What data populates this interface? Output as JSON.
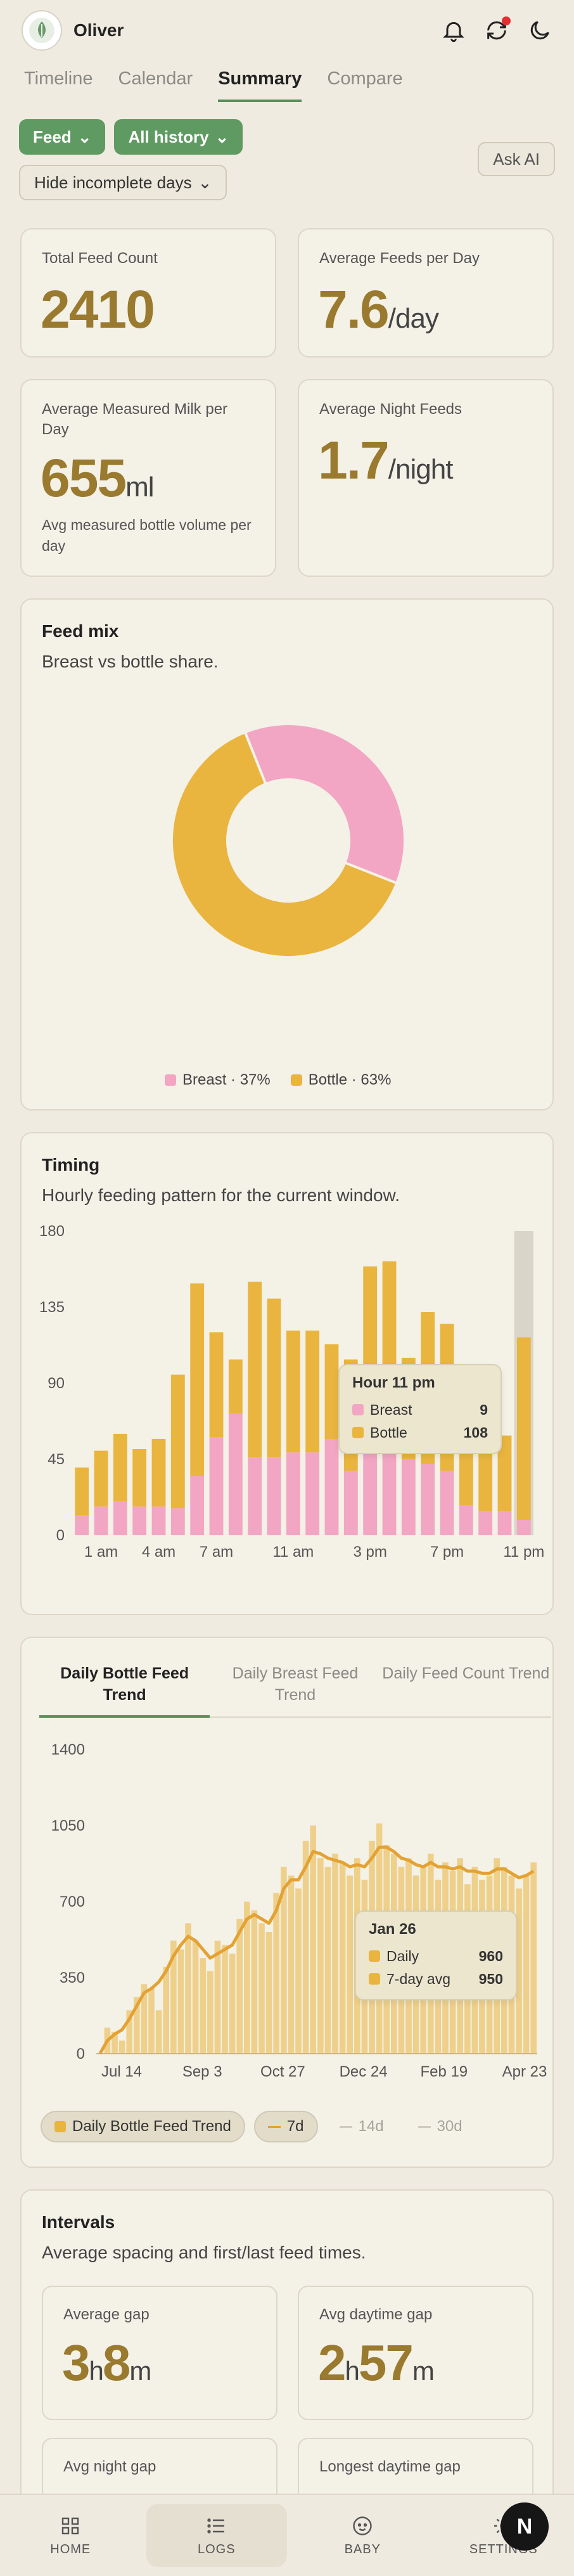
{
  "header": {
    "child_name": "Oliver",
    "icons": [
      "bell-icon",
      "sync-icon",
      "moon-icon"
    ],
    "sync_alert_color": "#e23030"
  },
  "tabs": [
    {
      "label": "Timeline"
    },
    {
      "label": "Calendar"
    },
    {
      "label": "Summary",
      "active": true
    },
    {
      "label": "Compare"
    }
  ],
  "filters": {
    "feed": "Feed",
    "history": "All history",
    "incomplete": "Hide incomplete days",
    "ask_ai": "Ask AI"
  },
  "stats": {
    "total": {
      "title": "Total Feed Count",
      "value": "2410"
    },
    "per_day": {
      "title": "Average Feeds per Day",
      "value": "7.6",
      "unit": "/day"
    },
    "milk": {
      "title": "Average Measured Milk per Day",
      "value": "655",
      "unit": "ml",
      "sub": "Avg measured bottle volume per day"
    },
    "night": {
      "title": "Average Night Feeds",
      "value": "1.7",
      "unit": "/night"
    }
  },
  "feed_mix": {
    "title": "Feed mix",
    "subtitle": "Breast vs bottle share.",
    "breast_label": "Breast · 37%",
    "bottle_label": "Bottle · 63%"
  },
  "timing": {
    "title": "Timing",
    "subtitle": "Hourly feeding pattern for the current window.",
    "tooltip": {
      "hour": "Hour 11 pm",
      "breast_label": "Breast",
      "breast": "9",
      "bottle_label": "Bottle",
      "bottle": "108"
    }
  },
  "trend": {
    "tabs": [
      {
        "label": "Daily Bottle Feed Trend",
        "active": true
      },
      {
        "label": "Daily Breast Feed Trend"
      },
      {
        "label": "Daily Feed Count Trend"
      }
    ],
    "tooltip": {
      "date": "Jan 26",
      "daily_label": "Daily",
      "daily": "960",
      "avg_label": "7-day avg",
      "avg": "950"
    },
    "chips": {
      "series": "Daily Bottle Feed Trend",
      "d7": "7d",
      "d14": "14d",
      "d30": "30d"
    }
  },
  "intervals": {
    "title": "Intervals",
    "subtitle": "Average spacing and first/last feed times.",
    "avg_gap": {
      "label": "Average gap",
      "h": "3",
      "m": "8"
    },
    "day_gap": {
      "label": "Avg daytime gap",
      "h": "2",
      "m": "57"
    },
    "night_gap": {
      "label": "Avg night gap"
    },
    "longest_day": {
      "label": "Longest daytime gap"
    },
    "unit_h": "h",
    "unit_m": "m"
  },
  "nav": [
    {
      "label": "HOME",
      "icon": "grid-icon"
    },
    {
      "label": "LOGS",
      "icon": "list-icon",
      "active": true
    },
    {
      "label": "BABY",
      "icon": "baby-icon"
    },
    {
      "label": "SETTINGS",
      "icon": "gear-icon"
    }
  ],
  "fab": "N",
  "colors": {
    "breast": "#f2a6c3",
    "bottle": "#e9b53f",
    "accent": "#9a7a2e",
    "green": "#5f9a62"
  },
  "chart_data": [
    {
      "type": "pie",
      "title": "Feed mix",
      "categories": [
        "Breast",
        "Bottle"
      ],
      "values": [
        37,
        63
      ]
    },
    {
      "type": "bar",
      "stacked": true,
      "title": "Timing",
      "categories": [
        "12 am",
        "1 am",
        "2 am",
        "3 am",
        "4 am",
        "5 am",
        "6 am",
        "7 am",
        "8 am",
        "9 am",
        "10 am",
        "11 am",
        "12 pm",
        "1 pm",
        "2 pm",
        "3 pm",
        "4 pm",
        "5 pm",
        "6 pm",
        "7 pm",
        "8 pm",
        "9 pm",
        "10 pm",
        "11 pm"
      ],
      "tick_labels": [
        "1 am",
        "4 am",
        "7 am",
        "11 am",
        "3 pm",
        "7 pm",
        "11 pm"
      ],
      "series": [
        {
          "name": "Breast",
          "values": [
            12,
            17,
            20,
            17,
            17,
            16,
            35,
            58,
            72,
            46,
            46,
            49,
            49,
            57,
            38,
            58,
            60,
            45,
            42,
            38,
            18,
            14,
            14,
            9
          ]
        },
        {
          "name": "Bottle",
          "values": [
            28,
            33,
            40,
            34,
            40,
            79,
            114,
            62,
            32,
            104,
            94,
            72,
            72,
            56,
            66,
            101,
            102,
            60,
            90,
            87,
            57,
            42,
            45,
            108
          ]
        }
      ],
      "ylim": [
        0,
        180
      ],
      "yticks": [
        0,
        45,
        90,
        135,
        180
      ],
      "highlight": "11 pm"
    },
    {
      "type": "bar",
      "title": "Daily Bottle Feed Trend",
      "xlabels": [
        "Jul 14",
        "Sep 3",
        "Oct 27",
        "Dec 24",
        "Feb 19",
        "Apr 23"
      ],
      "ylim": [
        0,
        1400
      ],
      "yticks": [
        0,
        350,
        700,
        1050,
        1400
      ],
      "series": [
        {
          "name": "Daily Bottle Feed Trend",
          "values": [
            0,
            120,
            100,
            60,
            200,
            260,
            320,
            300,
            200,
            400,
            520,
            480,
            600,
            520,
            440,
            380,
            520,
            500,
            460,
            620,
            700,
            660,
            600,
            560,
            740,
            860,
            820,
            760,
            980,
            1050,
            900,
            860,
            920,
            880,
            820,
            900,
            800,
            980,
            1060,
            960,
            920,
            860,
            900,
            820,
            860,
            920,
            800,
            880,
            840,
            900,
            780,
            860,
            800,
            820,
            900,
            860,
            820,
            760,
            820,
            880
          ]
        },
        {
          "name": "7-day avg",
          "values": [
            0,
            60,
            90,
            110,
            160,
            220,
            280,
            300,
            330,
            380,
            450,
            500,
            540,
            520,
            480,
            440,
            460,
            480,
            500,
            560,
            620,
            640,
            620,
            600,
            660,
            760,
            800,
            800,
            860,
            930,
            920,
            900,
            890,
            880,
            860,
            870,
            860,
            900,
            950,
            950,
            930,
            900,
            890,
            870,
            860,
            880,
            860,
            860,
            850,
            860,
            840,
            840,
            830,
            830,
            850,
            850,
            830,
            810,
            820,
            840
          ]
        }
      ]
    }
  ]
}
